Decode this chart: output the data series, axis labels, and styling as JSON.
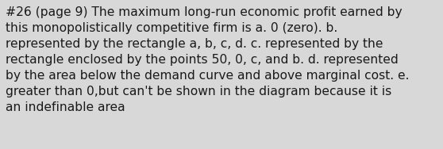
{
  "lines": [
    "#26 (page 9) The maximum long-run economic profit earned by",
    "this monopolistically competitive firm is a. 0 (zero). b.",
    "represented by the rectangle a, b, c, d. c. represented by the",
    "rectangle enclosed by the points 50, 0, c, and b. d. represented",
    "by the area below the demand curve and above marginal cost. e.",
    "greater than 0,but can't be shown in the diagram because it is",
    "an indefinable area"
  ],
  "background_color": "#d8d8d8",
  "text_color": "#1a1a1a",
  "font_size": 11.2,
  "font_family": "DejaVu Sans"
}
